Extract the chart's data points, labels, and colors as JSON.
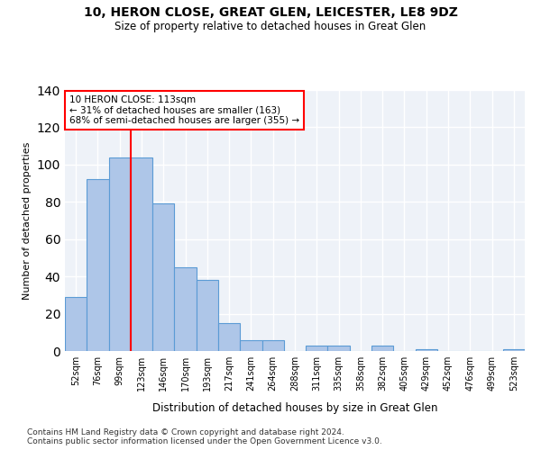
{
  "title1": "10, HERON CLOSE, GREAT GLEN, LEICESTER, LE8 9DZ",
  "title2": "Size of property relative to detached houses in Great Glen",
  "xlabel": "Distribution of detached houses by size in Great Glen",
  "ylabel": "Number of detached properties",
  "categories": [
    "52sqm",
    "76sqm",
    "99sqm",
    "123sqm",
    "146sqm",
    "170sqm",
    "193sqm",
    "217sqm",
    "241sqm",
    "264sqm",
    "288sqm",
    "311sqm",
    "335sqm",
    "358sqm",
    "382sqm",
    "405sqm",
    "429sqm",
    "452sqm",
    "476sqm",
    "499sqm",
    "523sqm"
  ],
  "values": [
    29,
    92,
    104,
    104,
    79,
    45,
    38,
    15,
    6,
    6,
    0,
    3,
    3,
    0,
    3,
    0,
    1,
    0,
    0,
    0,
    1
  ],
  "bar_color": "#aec6e8",
  "bar_edge_color": "#5b9bd5",
  "red_line_x": 2.5,
  "annotation_text": "10 HERON CLOSE: 113sqm\n← 31% of detached houses are smaller (163)\n68% of semi-detached houses are larger (355) →",
  "annotation_box_color": "white",
  "annotation_box_edge_color": "red",
  "ylim": [
    0,
    140
  ],
  "yticks": [
    0,
    20,
    40,
    60,
    80,
    100,
    120,
    140
  ],
  "background_color": "#eef2f8",
  "grid_color": "white",
  "footer_text": "Contains HM Land Registry data © Crown copyright and database right 2024.\nContains public sector information licensed under the Open Government Licence v3.0."
}
